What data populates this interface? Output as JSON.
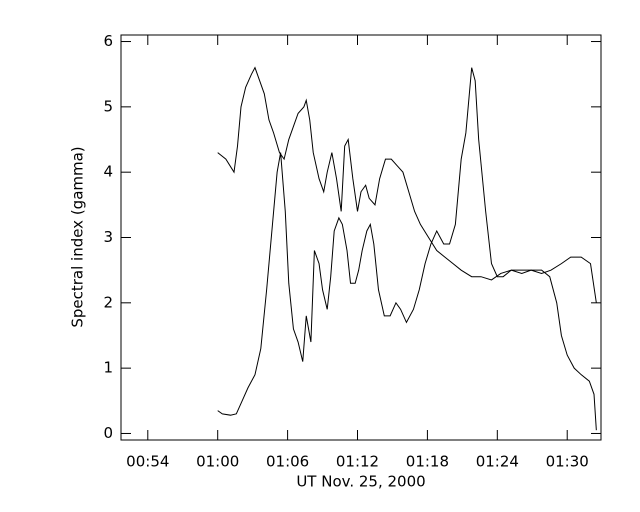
{
  "chart_data": {
    "type": "line",
    "xlabel": "UT Nov. 25, 2000",
    "ylabel": "Spectral index (gamma)",
    "xlim": [
      51.7,
      92.9
    ],
    "xticks": [
      {
        "value": 54,
        "label": "00:54"
      },
      {
        "value": 60,
        "label": "01:00"
      },
      {
        "value": 66,
        "label": "01:06"
      },
      {
        "value": 72,
        "label": "01:12"
      },
      {
        "value": 78,
        "label": "01:18"
      },
      {
        "value": 84,
        "label": "01:24"
      },
      {
        "value": 90,
        "label": "01:30"
      }
    ],
    "ylim": [
      -0.1,
      6.1
    ],
    "yticks": [
      0,
      1,
      2,
      3,
      4,
      5,
      6
    ],
    "series": [
      {
        "color": "#000000",
        "x": [
          60.0,
          60.7,
          61.4,
          61.7,
          62.0,
          62.4,
          62.9,
          63.2,
          63.6,
          64.0,
          64.4,
          64.8,
          65.3,
          65.7,
          66.1,
          66.5,
          66.9,
          67.4,
          67.6,
          67.9,
          68.2,
          68.7,
          69.1,
          69.4,
          69.8,
          70.2,
          70.6,
          70.9,
          71.2,
          71.6,
          72.0,
          72.3,
          72.7,
          73.0,
          73.5,
          73.9,
          74.4,
          74.9,
          75.4,
          75.9,
          76.4,
          76.9,
          77.4,
          78.1,
          78.8,
          79.5,
          80.2,
          80.9,
          81.8,
          82.6,
          83.5,
          84.3,
          85.2,
          86.1,
          86.9,
          87.8,
          88.5,
          89.1,
          89.5,
          90.0,
          90.6,
          91.2,
          91.9,
          92.3,
          92.5
        ],
        "values": [
          4.3,
          4.2,
          4.0,
          4.4,
          5.0,
          5.3,
          5.5,
          5.6,
          5.4,
          5.2,
          4.8,
          4.6,
          4.3,
          4.2,
          4.5,
          4.7,
          4.9,
          5.0,
          5.1,
          4.8,
          4.3,
          3.9,
          3.7,
          4.0,
          4.3,
          3.9,
          3.4,
          4.4,
          4.5,
          3.9,
          3.4,
          3.7,
          3.8,
          3.6,
          3.5,
          3.9,
          4.2,
          4.2,
          4.1,
          4.0,
          3.7,
          3.4,
          3.2,
          3.0,
          2.8,
          2.7,
          2.6,
          2.5,
          2.4,
          2.4,
          2.35,
          2.45,
          2.5,
          2.45,
          2.5,
          2.5,
          2.4,
          2.0,
          1.5,
          1.2,
          1.0,
          0.9,
          0.8,
          0.6,
          0.05
        ]
      },
      {
        "color": "#000000",
        "x": [
          60.0,
          60.4,
          61.1,
          61.6,
          62.1,
          62.6,
          63.2,
          63.7,
          64.2,
          64.7,
          65.1,
          65.4,
          65.8,
          66.1,
          66.5,
          66.9,
          67.3,
          67.6,
          68.0,
          68.3,
          68.7,
          69.0,
          69.4,
          69.7,
          70.0,
          70.4,
          70.7,
          71.1,
          71.4,
          71.8,
          72.1,
          72.4,
          72.8,
          73.1,
          73.4,
          73.8,
          74.3,
          74.8,
          75.3,
          75.7,
          76.2,
          76.8,
          77.3,
          77.8,
          78.3,
          78.8,
          79.4,
          79.9,
          80.4,
          80.9,
          81.3,
          81.8,
          82.1,
          82.4,
          83.0,
          83.5,
          84.0,
          84.5,
          85.2,
          86.1,
          86.9,
          87.8,
          88.6,
          89.5,
          90.3,
          91.2,
          92.0,
          92.5
        ],
        "values": [
          0.35,
          0.3,
          0.28,
          0.3,
          0.5,
          0.7,
          0.9,
          1.3,
          2.2,
          3.2,
          4.0,
          4.3,
          3.4,
          2.3,
          1.6,
          1.4,
          1.1,
          1.8,
          1.4,
          2.8,
          2.6,
          2.2,
          1.9,
          2.4,
          3.1,
          3.3,
          3.2,
          2.8,
          2.3,
          2.3,
          2.5,
          2.8,
          3.1,
          3.2,
          2.9,
          2.2,
          1.8,
          1.8,
          2.0,
          1.9,
          1.7,
          1.9,
          2.2,
          2.6,
          2.9,
          3.1,
          2.9,
          2.9,
          3.2,
          4.2,
          4.6,
          5.6,
          5.4,
          4.5,
          3.4,
          2.6,
          2.4,
          2.4,
          2.5,
          2.5,
          2.5,
          2.45,
          2.5,
          2.6,
          2.7,
          2.7,
          2.6,
          2.0
        ]
      }
    ]
  }
}
